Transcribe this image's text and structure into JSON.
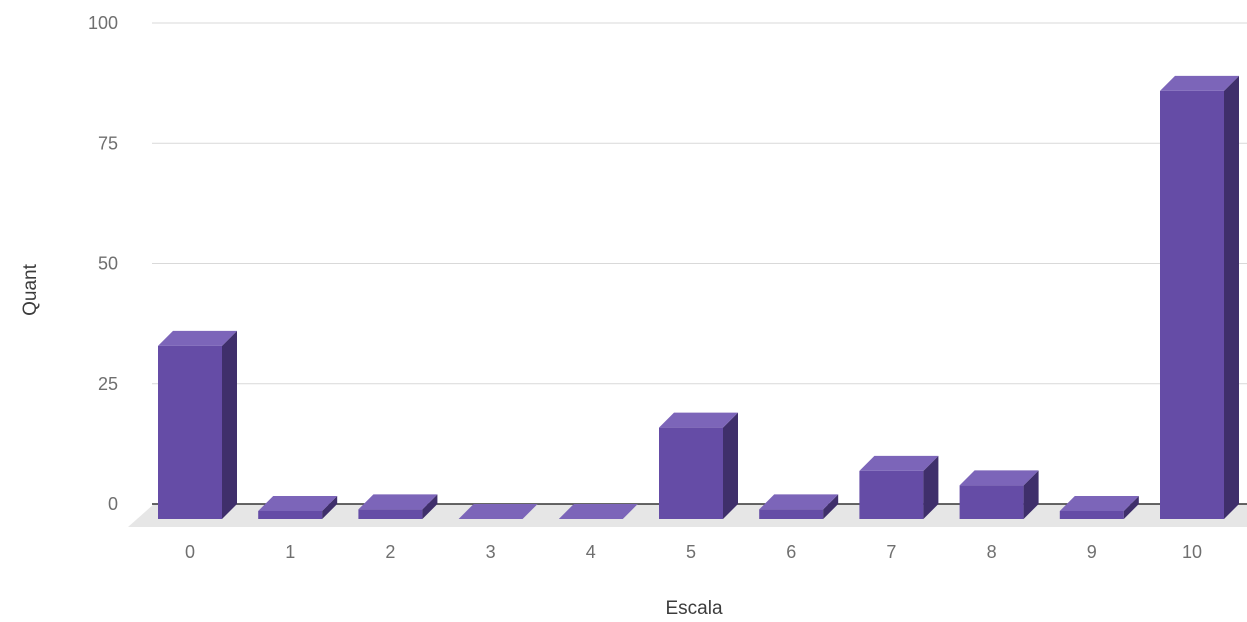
{
  "chart_data": {
    "type": "bar",
    "categories": [
      "0",
      "1",
      "2",
      "3",
      "4",
      "5",
      "6",
      "7",
      "8",
      "9",
      "10"
    ],
    "values": [
      36,
      1,
      2,
      0,
      0,
      19,
      2,
      10,
      7,
      1,
      89
    ],
    "xlabel": "Escala",
    "ylabel": "Quant",
    "ylim": [
      0,
      100
    ],
    "yticks": [
      "0",
      "25",
      "50",
      "75",
      "100"
    ],
    "grid": true,
    "bar_style": "3d",
    "colors": {
      "bar_front": "#654ca6",
      "bar_top": "#7c65b9",
      "bar_side": "#3f2f6b",
      "floor": "#e6e6e6",
      "grid": "#d9d9d9",
      "baseline": "#333333"
    }
  }
}
